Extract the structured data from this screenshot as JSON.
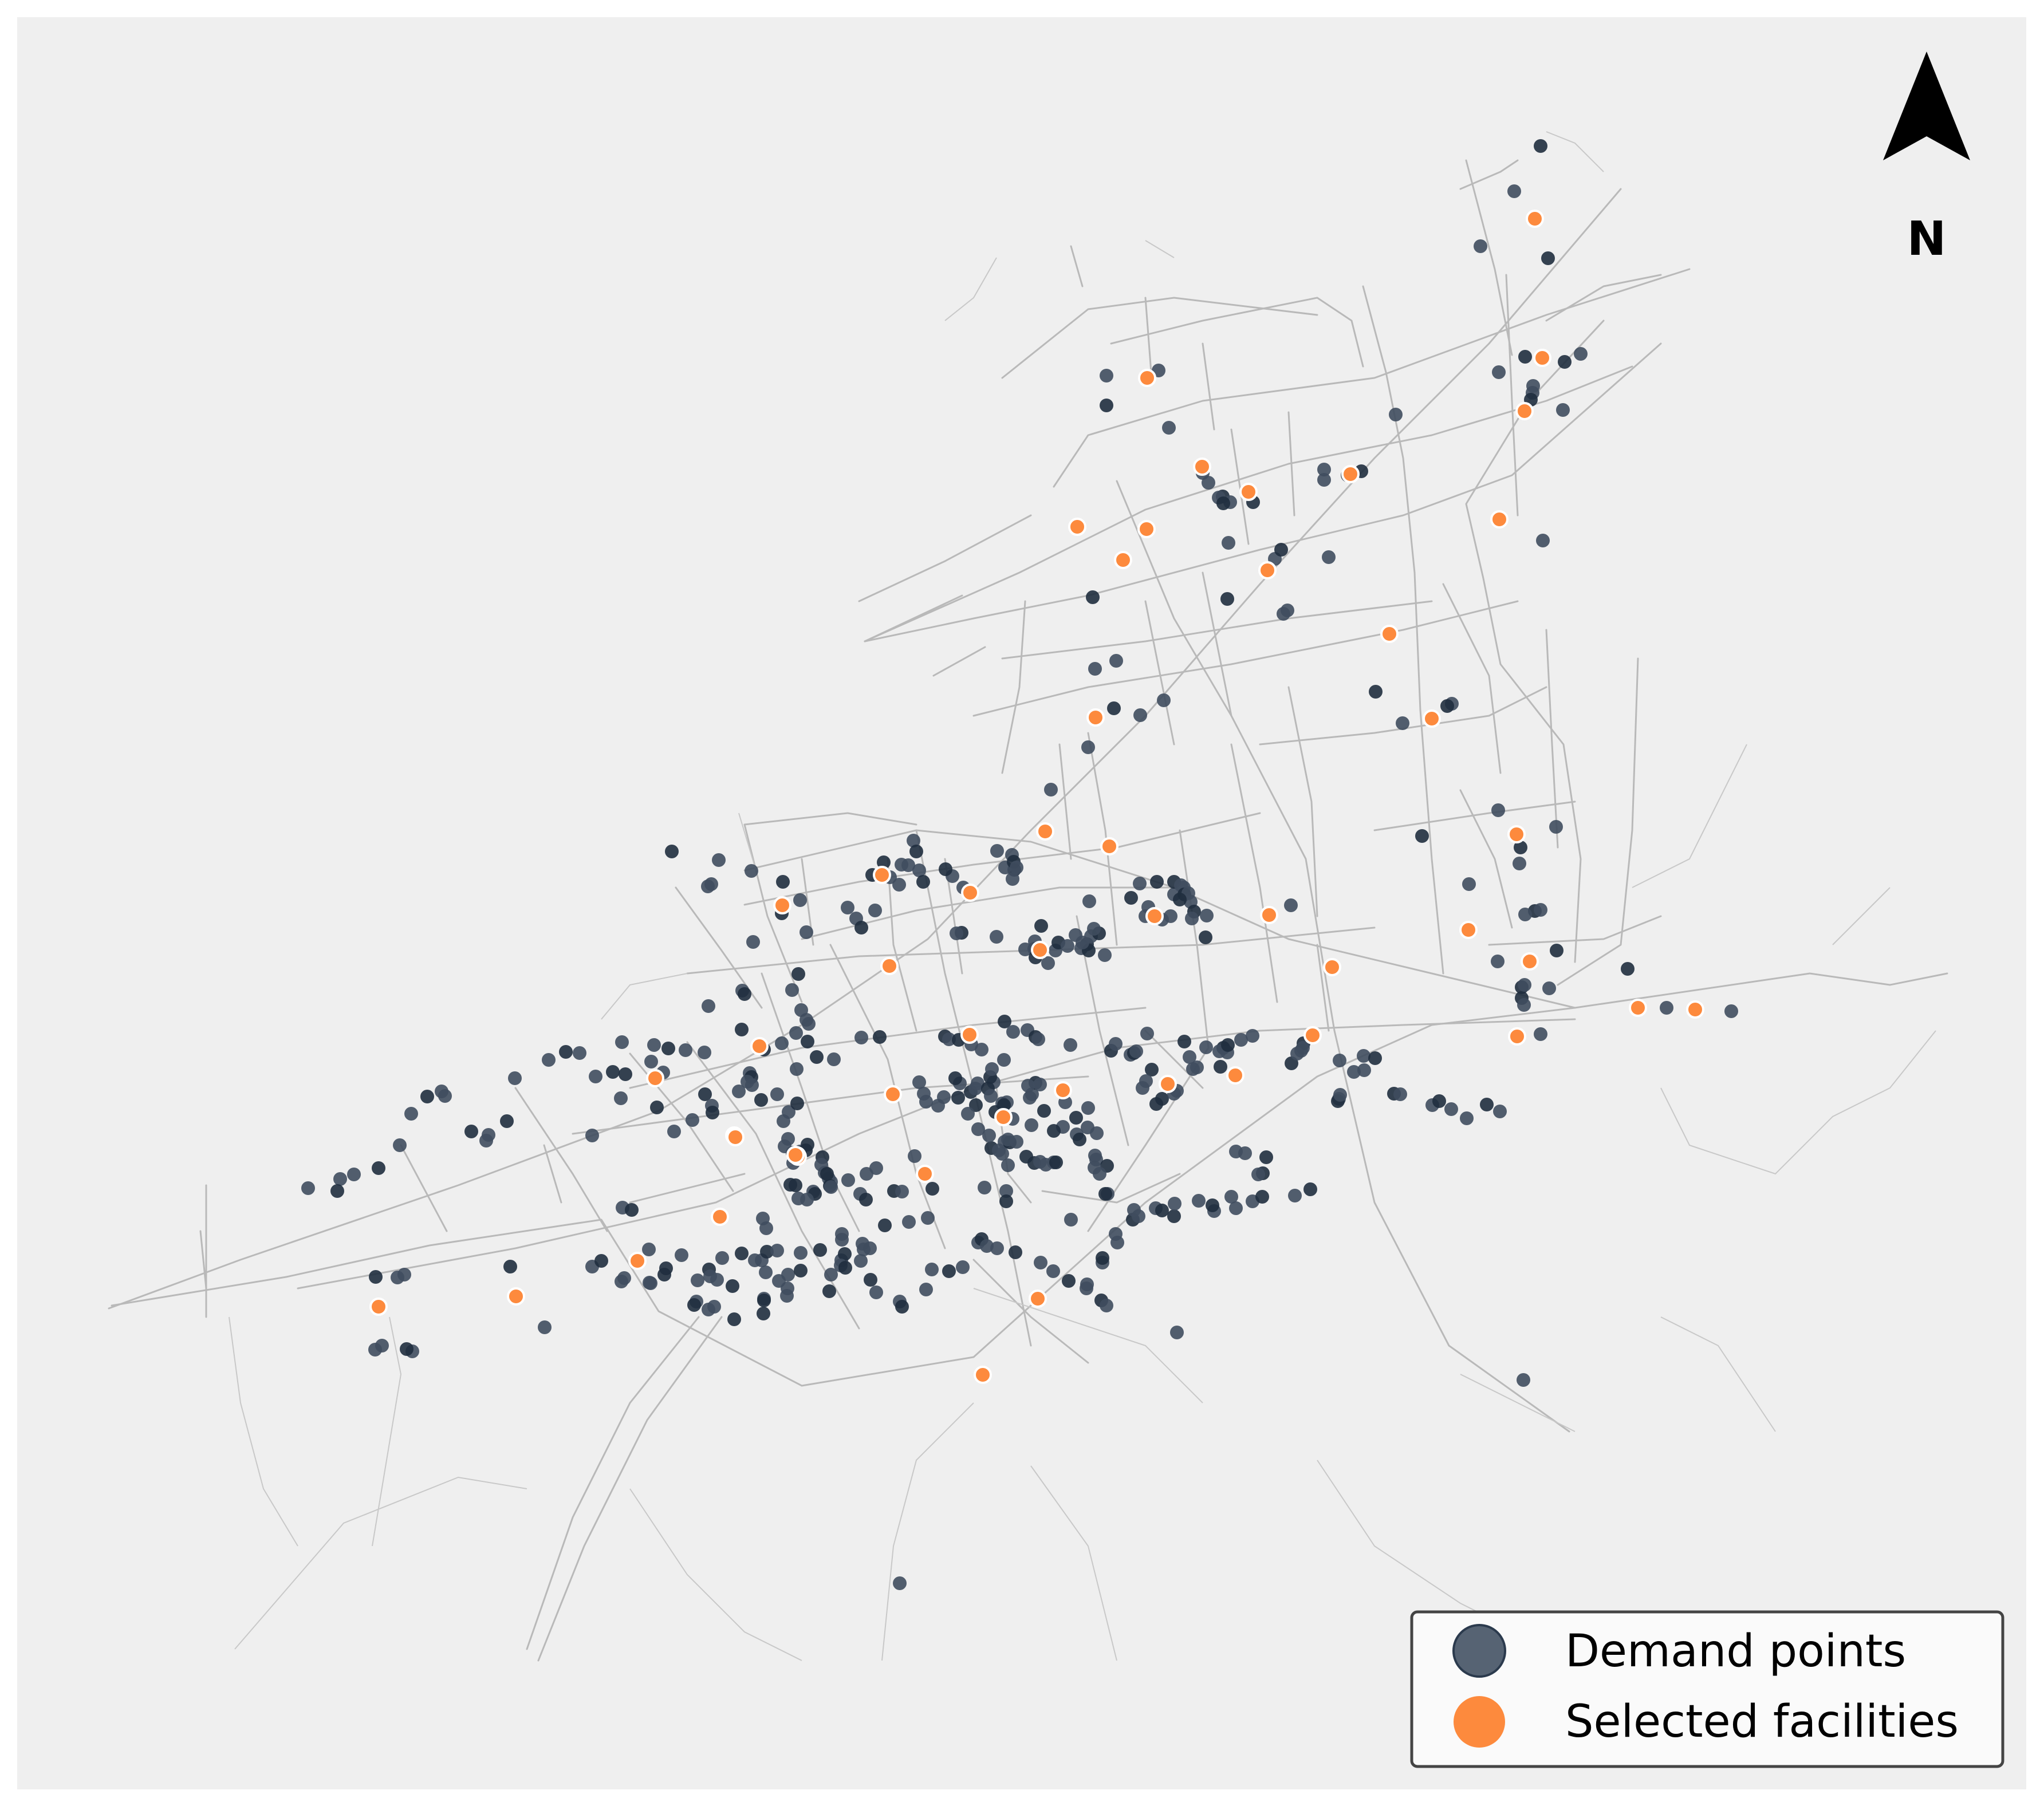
{
  "map": {
    "background_color": "#efefef",
    "road_color": "#b9b9b9",
    "demand_color": "#2b3a4d",
    "facility_color": "#fd8a3d",
    "north_arrow": {
      "icon": "north-arrow-icon",
      "label": "N"
    },
    "legend": {
      "items": [
        {
          "label": "Demand points",
          "marker": "dark-circle"
        },
        {
          "label": "Selected facilities",
          "marker": "orange-circle"
        }
      ]
    }
  }
}
